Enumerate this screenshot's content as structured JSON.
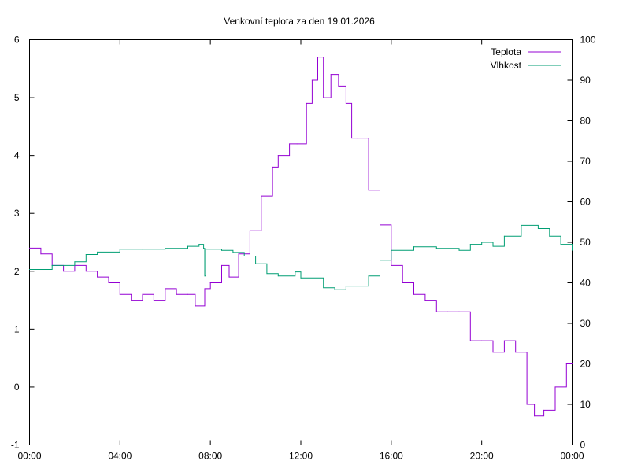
{
  "chart_data": {
    "type": "line",
    "title": "Venkovní teplota za den 19.01.2026",
    "xlabel": "",
    "ylabel": "",
    "y2label": "",
    "xlim": [
      0,
      24
    ],
    "ylim": [
      -1,
      6
    ],
    "y2lim": [
      0,
      100
    ],
    "x_ticks": [
      "00:00",
      "04:00",
      "08:00",
      "12:00",
      "16:00",
      "20:00",
      "00:00"
    ],
    "y_ticks": [
      "-1",
      "0",
      "1",
      "2",
      "3",
      "4",
      "5",
      "6"
    ],
    "y2_ticks": [
      "0",
      "10",
      "20",
      "30",
      "40",
      "50",
      "60",
      "70",
      "80",
      "90",
      "100"
    ],
    "grid": false,
    "legend_placement": "top-right",
    "series": [
      {
        "name": "Teplota",
        "axis": "left",
        "color": "#9400d3",
        "x": [
          0,
          0.5,
          1,
          1.5,
          2,
          2.5,
          3,
          3.5,
          4,
          4.5,
          5,
          5.5,
          6,
          6.5,
          7,
          7.33,
          7.75,
          8,
          8.5,
          8.83,
          9.25,
          9.75,
          10.25,
          10.75,
          11,
          11.5,
          11.83,
          12.25,
          12.5,
          12.75,
          13,
          13.33,
          13.67,
          14,
          14.25,
          14.5,
          15,
          15.5,
          16,
          16.5,
          17,
          17.5,
          18,
          18.5,
          19,
          19.5,
          20,
          20.5,
          21,
          21.5,
          22,
          22.33,
          22.75,
          23.25,
          23.75,
          24
        ],
        "values": [
          2.4,
          2.3,
          2.1,
          2.0,
          2.1,
          2.0,
          1.9,
          1.8,
          1.6,
          1.5,
          1.6,
          1.5,
          1.7,
          1.6,
          1.6,
          1.4,
          1.7,
          1.8,
          2.1,
          1.9,
          2.3,
          2.7,
          3.3,
          3.8,
          4.0,
          4.2,
          4.2,
          4.9,
          5.3,
          5.7,
          5.0,
          5.4,
          5.2,
          4.9,
          4.3,
          4.3,
          3.4,
          2.8,
          2.1,
          1.8,
          1.6,
          1.5,
          1.3,
          1.3,
          1.3,
          0.8,
          0.8,
          0.6,
          0.8,
          0.6,
          -0.3,
          -0.5,
          -0.4,
          0.0,
          0.4,
          0.4
        ]
      },
      {
        "name": "Vlhkost",
        "axis": "right",
        "color": "#009e73",
        "x": [
          0,
          1,
          2,
          2.5,
          3,
          4,
          5,
          6,
          7,
          7.5,
          7.7,
          7.75,
          7.8,
          8.5,
          9,
          9.5,
          10,
          10.5,
          11,
          11.75,
          12,
          13,
          13.5,
          14,
          15,
          15.5,
          16,
          17,
          18,
          19,
          19.5,
          20,
          20.5,
          21,
          21.75,
          22.5,
          23,
          23.5,
          24
        ],
        "values": [
          43.3,
          44.3,
          45.2,
          47,
          47.6,
          48.3,
          48.3,
          48.5,
          49,
          49.5,
          48.5,
          41.7,
          48.3,
          48,
          47.5,
          46.6,
          44.7,
          42.3,
          41.7,
          42.7,
          41.2,
          38.8,
          38.3,
          39.2,
          41.7,
          45.6,
          48,
          48.9,
          48.5,
          48,
          49.5,
          50,
          49,
          51.5,
          54.2,
          53.4,
          51.5,
          49.5,
          48
        ]
      }
    ]
  }
}
